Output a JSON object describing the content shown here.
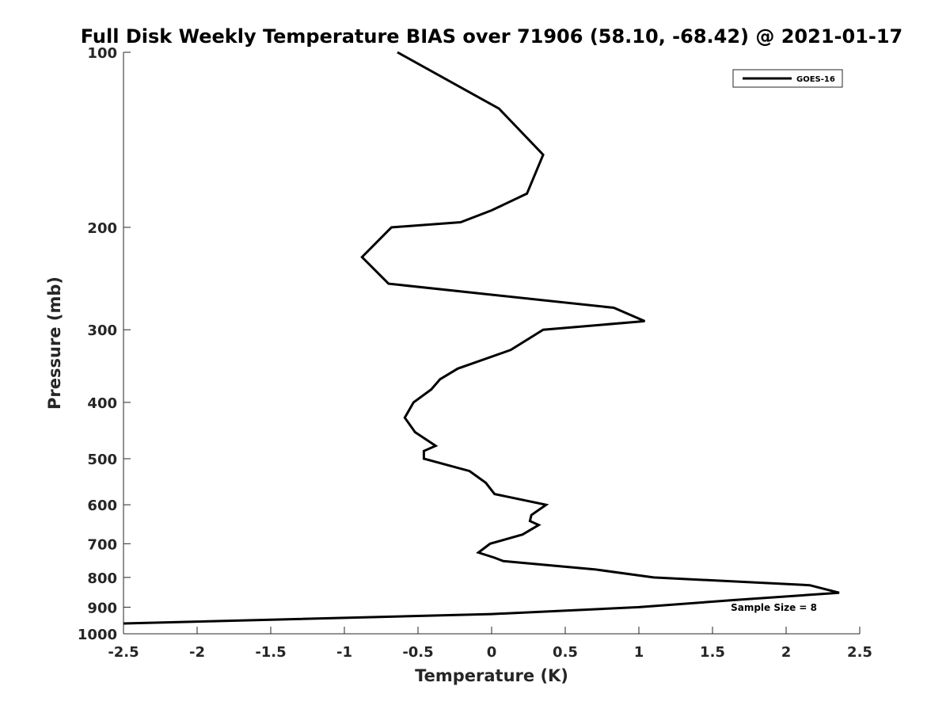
{
  "chart_data": {
    "type": "line",
    "title": "Full Disk Weekly Temperature BIAS over 71906 (58.10, -68.42) @ 2021-01-17",
    "xlabel": "Temperature (K)",
    "ylabel": "Pressure (mb)",
    "xlim": [
      -2.5,
      2.5
    ],
    "ylim": [
      100,
      1000
    ],
    "y_scale": "log",
    "y_reversed": true,
    "grid": false,
    "legend_position": "top-right",
    "x_ticks": [
      "-2.5",
      "-2",
      "-1.5",
      "-1",
      "-0.5",
      "0",
      "0.5",
      "1",
      "1.5",
      "2",
      "2.5"
    ],
    "x_tick_values": [
      -2.5,
      -2,
      -1.5,
      -1,
      -0.5,
      0,
      0.5,
      1,
      1.5,
      2,
      2.5
    ],
    "y_ticks": [
      "100",
      "200",
      "300",
      "400",
      "500",
      "600",
      "700",
      "800",
      "900",
      "1000"
    ],
    "y_tick_values": [
      100,
      200,
      300,
      400,
      500,
      600,
      700,
      800,
      900,
      1000
    ],
    "annotation": "Sample Size = 8",
    "series": [
      {
        "name": "GOES-16",
        "color": "#000000",
        "points": [
          {
            "t": -0.64,
            "p": 100
          },
          {
            "t": 0.05,
            "p": 125
          },
          {
            "t": 0.35,
            "p": 150
          },
          {
            "t": 0.24,
            "p": 175
          },
          {
            "t": 0.0,
            "p": 187
          },
          {
            "t": -0.21,
            "p": 196
          },
          {
            "t": -0.68,
            "p": 200
          },
          {
            "t": -0.88,
            "p": 225
          },
          {
            "t": -0.7,
            "p": 250
          },
          {
            "t": 0.83,
            "p": 275
          },
          {
            "t": 1.04,
            "p": 290
          },
          {
            "t": 0.35,
            "p": 300
          },
          {
            "t": 0.13,
            "p": 325
          },
          {
            "t": -0.23,
            "p": 350
          },
          {
            "t": -0.35,
            "p": 365
          },
          {
            "t": -0.41,
            "p": 380
          },
          {
            "t": -0.53,
            "p": 400
          },
          {
            "t": -0.59,
            "p": 425
          },
          {
            "t": -0.52,
            "p": 450
          },
          {
            "t": -0.38,
            "p": 475
          },
          {
            "t": -0.46,
            "p": 485
          },
          {
            "t": -0.46,
            "p": 500
          },
          {
            "t": -0.15,
            "p": 525
          },
          {
            "t": -0.04,
            "p": 550
          },
          {
            "t": 0.02,
            "p": 575
          },
          {
            "t": 0.37,
            "p": 600
          },
          {
            "t": 0.27,
            "p": 625
          },
          {
            "t": 0.26,
            "p": 640
          },
          {
            "t": 0.32,
            "p": 650
          },
          {
            "t": 0.21,
            "p": 675
          },
          {
            "t": -0.01,
            "p": 700
          },
          {
            "t": -0.09,
            "p": 725
          },
          {
            "t": 0.02,
            "p": 740
          },
          {
            "t": 0.08,
            "p": 750
          },
          {
            "t": 0.7,
            "p": 775
          },
          {
            "t": 1.1,
            "p": 800
          },
          {
            "t": 2.16,
            "p": 825
          },
          {
            "t": 2.36,
            "p": 850
          },
          {
            "t": 1.65,
            "p": 875
          },
          {
            "t": 1.0,
            "p": 900
          },
          {
            "t": 0.0,
            "p": 925
          },
          {
            "t": -2.5,
            "p": 960
          }
        ]
      }
    ]
  }
}
